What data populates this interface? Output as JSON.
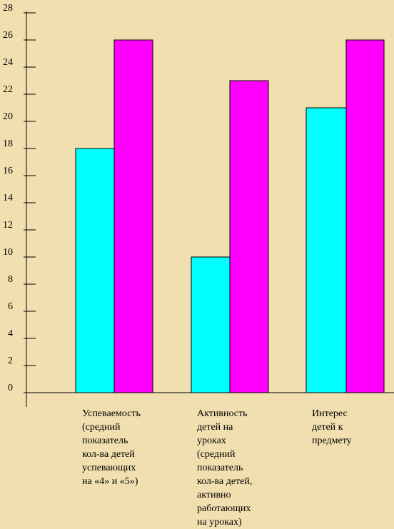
{
  "chart_data": {
    "type": "bar",
    "title": "",
    "xlabel": "",
    "ylabel": "",
    "ylim": [
      0,
      28
    ],
    "yticks": [
      0,
      2,
      4,
      6,
      8,
      10,
      12,
      14,
      16,
      18,
      20,
      22,
      24,
      26,
      28
    ],
    "grid": false,
    "legend": "none",
    "categories": [
      "Успеваемость\n(средний\nпоказатель\nкол-ва детей\nуспевающих\nна «4» и «5»)",
      "Активность\nдетей на\nуроках\n(средний\nпоказатель\nкол-ва детей,\nактивно\nработающих\nна уроках)",
      "Интерес\nдетей к\nпредмету"
    ],
    "series": [
      {
        "values": [
          18,
          10,
          21
        ],
        "color": "#00ffff"
      },
      {
        "values": [
          26,
          23,
          26
        ],
        "color": "#ff00ff"
      }
    ]
  }
}
